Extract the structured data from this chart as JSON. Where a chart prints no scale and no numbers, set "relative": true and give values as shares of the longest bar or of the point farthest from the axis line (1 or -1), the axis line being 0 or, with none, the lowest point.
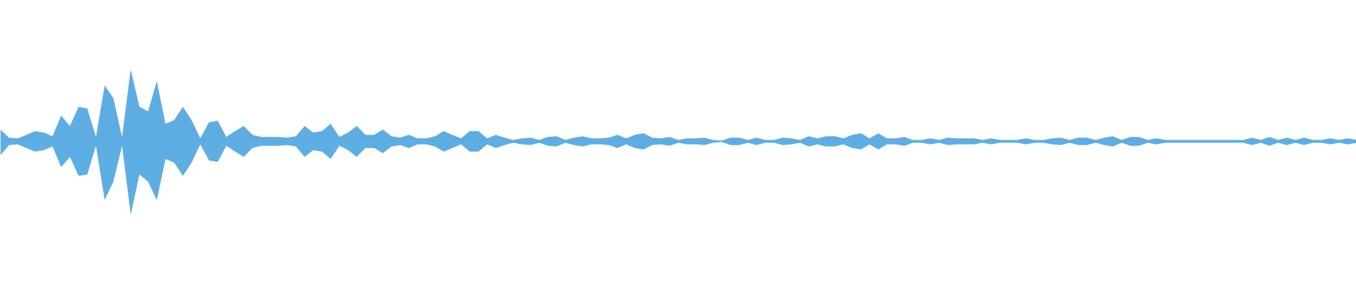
{
  "chart_data": {
    "type": "area",
    "relative": true,
    "ref_lines": [
      {
        "axis": "y",
        "value": 0,
        "color": "#5dade2"
      }
    ],
    "categories": [
      null,
      null,
      null,
      null,
      null,
      null,
      null,
      null,
      null,
      null,
      null,
      null,
      null,
      null,
      null,
      null,
      null,
      null,
      null,
      null,
      null,
      null,
      null,
      null,
      null,
      null,
      null,
      null,
      null,
      null,
      null,
      null,
      null,
      null,
      null,
      null,
      null,
      null,
      null,
      null,
      null,
      null,
      null,
      null,
      null,
      null,
      null,
      null,
      null,
      null,
      null,
      null,
      null,
      null,
      null,
      null,
      null,
      null,
      null,
      null,
      null,
      null,
      null,
      null,
      null,
      null,
      null,
      null,
      null,
      null,
      null,
      null,
      null,
      null,
      null,
      null,
      null,
      null,
      null,
      null,
      null,
      null,
      null,
      null,
      null,
      null,
      null,
      null,
      null,
      null,
      null,
      null,
      null,
      null,
      null,
      null,
      null,
      null,
      null,
      null,
      null,
      null,
      null,
      null,
      null,
      null,
      null,
      null,
      null,
      null,
      null,
      null,
      null,
      null,
      null,
      null,
      null,
      null,
      null,
      null,
      null,
      null,
      null,
      null,
      null,
      null,
      null,
      null,
      null,
      null,
      null,
      null,
      null,
      null,
      null,
      null,
      null,
      null,
      null,
      null,
      null,
      null,
      null,
      null,
      null,
      null,
      null,
      null,
      null,
      null,
      null,
      null,
      null,
      null,
      null,
      null,
      null
    ],
    "series": [
      {
        "color": "#5dade2",
        "values": [
          0.16,
          0.05,
          0.04,
          0.09,
          0.14,
          0.12,
          0.07,
          0.35,
          0.21,
          0.47,
          0.45,
          0.06,
          0.76,
          0.59,
          0.06,
          0.98,
          0.47,
          0.41,
          0.82,
          0.24,
          0.29,
          0.47,
          0.29,
          0.04,
          0.26,
          0.28,
          0.06,
          0.14,
          0.21,
          0.09,
          0.06,
          0.06,
          0.06,
          0.05,
          0.07,
          0.21,
          0.12,
          0.14,
          0.24,
          0.06,
          0.12,
          0.21,
          0.09,
          0.09,
          0.16,
          0.07,
          0.05,
          0.09,
          0.04,
          0.04,
          0.07,
          0.14,
          0.09,
          0.04,
          0.14,
          0.14,
          0.04,
          0.09,
          0.05,
          0.02,
          0.04,
          0.05,
          0.02,
          0.06,
          0.07,
          0.02,
          0.05,
          0.07,
          0.04,
          0.04,
          0.05,
          0.09,
          0.04,
          0.09,
          0.11,
          0.05,
          0.04,
          0.06,
          0.02,
          0.04,
          0.04,
          0.05,
          0.02,
          0.01,
          0.05,
          0.05,
          0.02,
          0.05,
          0.02,
          0.02,
          0.05,
          0.04,
          0.02,
          0.07,
          0.04,
          0.07,
          0.07,
          0.04,
          0.09,
          0.11,
          0.04,
          0.11,
          0.04,
          0.04,
          0.06,
          0.02,
          0.02,
          0.04,
          0.02,
          0.05,
          0.04,
          0.04,
          0.04,
          0.02,
          0.04,
          0.02,
          0.02,
          0.02,
          0.04,
          0.02,
          0.02,
          0.04,
          0.05,
          0.02,
          0.05,
          0.05,
          0.02,
          0.05,
          0.07,
          0.02,
          0.06,
          0.06,
          0.02,
          0.04,
          0.02,
          0.02,
          0.02,
          0.02,
          0.02,
          0.02,
          0.02,
          0.02,
          0.02,
          0.02,
          0.05,
          0.02,
          0.06,
          0.02,
          0.05,
          0.02,
          0.05,
          0.02,
          0.02,
          0.04,
          0.02,
          0.04,
          0.02
        ]
      },
      {
        "color": "#5daee3",
        "values": [
          -0.19,
          -0.05,
          -0.04,
          -0.09,
          -0.14,
          -0.12,
          -0.07,
          -0.35,
          -0.21,
          -0.47,
          -0.45,
          -0.06,
          -0.8,
          -0.55,
          -0.06,
          -1.0,
          -0.45,
          -0.55,
          -0.8,
          -0.24,
          -0.29,
          -0.47,
          -0.29,
          -0.04,
          -0.26,
          -0.28,
          -0.06,
          -0.14,
          -0.21,
          -0.09,
          -0.06,
          -0.06,
          -0.06,
          -0.05,
          -0.07,
          -0.21,
          -0.12,
          -0.14,
          -0.24,
          -0.06,
          -0.12,
          -0.21,
          -0.09,
          -0.09,
          -0.16,
          -0.07,
          -0.05,
          -0.09,
          -0.04,
          -0.04,
          -0.07,
          -0.14,
          -0.09,
          -0.04,
          -0.14,
          -0.14,
          -0.04,
          -0.09,
          -0.05,
          -0.02,
          -0.04,
          -0.05,
          -0.02,
          -0.06,
          -0.07,
          -0.02,
          -0.05,
          -0.07,
          -0.04,
          -0.04,
          -0.05,
          -0.09,
          -0.04,
          -0.09,
          -0.11,
          -0.05,
          -0.04,
          -0.06,
          -0.02,
          -0.04,
          -0.04,
          -0.05,
          -0.02,
          -0.01,
          -0.05,
          -0.05,
          -0.02,
          -0.05,
          -0.02,
          -0.02,
          -0.05,
          -0.04,
          -0.02,
          -0.07,
          -0.04,
          -0.07,
          -0.07,
          -0.04,
          -0.09,
          -0.11,
          -0.04,
          -0.11,
          -0.04,
          -0.04,
          -0.06,
          -0.02,
          -0.02,
          -0.04,
          -0.02,
          -0.05,
          -0.04,
          -0.04,
          -0.04,
          -0.02,
          -0.04,
          -0.02,
          -0.02,
          -0.02,
          -0.04,
          -0.02,
          -0.02,
          -0.04,
          -0.05,
          -0.02,
          -0.05,
          -0.05,
          -0.02,
          -0.05,
          -0.07,
          -0.02,
          -0.06,
          -0.06,
          -0.02,
          -0.04,
          -0.02,
          -0.02,
          -0.02,
          -0.02,
          -0.02,
          -0.02,
          -0.02,
          -0.02,
          -0.02,
          -0.02,
          -0.05,
          -0.02,
          -0.06,
          -0.02,
          -0.05,
          -0.02,
          -0.05,
          -0.02,
          -0.02,
          -0.04,
          -0.02,
          -0.04,
          -0.02
        ]
      }
    ]
  }
}
